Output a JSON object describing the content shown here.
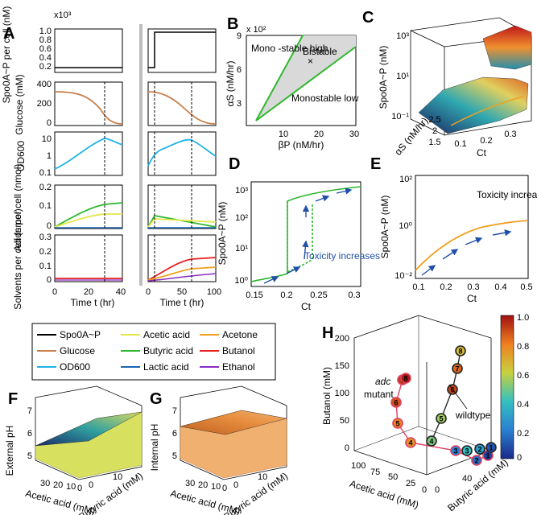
{
  "panels": {
    "A": "A",
    "B": "B",
    "C": "C",
    "D": "D",
    "E": "E",
    "F": "F",
    "G": "G",
    "H": "H"
  },
  "colors": {
    "spo0a": "#000000",
    "glucose": "#c8804a",
    "od600": "#1fb3e6",
    "acetic": "#e6e64a",
    "butyric": "#2eb82e",
    "lactic": "#1a66b3",
    "acetone": "#f0a020",
    "butanol": "#e62020",
    "ethanol": "#8a2bc2",
    "arrow": "#1f4fa8",
    "region": "#d9d9d9"
  },
  "panelA": {
    "xlabel": "Time t (hr)",
    "scale": "x10³",
    "rows": [
      {
        "label": "Spo0A~P per cell (nM)",
        "ticks": [
          "1.0",
          "0.8",
          "0.6",
          "0.4",
          "0.2",
          "0"
        ]
      },
      {
        "label": "Glucose (mM)",
        "ticks": [
          "400",
          "200",
          "0"
        ]
      },
      {
        "label": "OD600",
        "ticks": [
          "10",
          "1",
          "0.1"
        ]
      },
      {
        "label": "Acids per cell (nmol)",
        "ticks": [
          "0.2",
          "0.1",
          "0"
        ]
      },
      {
        "label": "Solvents per cell (nmol)",
        "ticks": [
          "0.3",
          "0.2",
          "0.1",
          "0"
        ]
      }
    ],
    "left_xticks": [
      "0",
      "20",
      "40"
    ],
    "right_xticks": [
      "0",
      "50",
      "100"
    ]
  },
  "panelB": {
    "scale": "x 10²",
    "ylabel": "αS (nM/hr)",
    "xlabel": "βP (nM/hr)",
    "xticks": [
      "10",
      "20",
      "30"
    ],
    "yticks": [
      "9",
      "6",
      "3"
    ],
    "region_labels": [
      "Mono -stable high",
      "Bistable",
      "Monostable low"
    ],
    "marker": "×"
  },
  "panelC": {
    "zlabel": "Spo0A~P (nM)",
    "zticks": [
      "10³",
      "10¹",
      "10⁻¹"
    ],
    "xlabel": "Ct",
    "xticks": [
      "0.1",
      "0.2",
      "0.3"
    ],
    "ylabel": "αS (nM/hr)",
    "yticks": [
      "2.5",
      "2",
      "1.5"
    ]
  },
  "panelD": {
    "ylabel": "Spo0A~P (nM)",
    "xlabel": "Ct",
    "xticks": [
      "0.15",
      "0.2",
      "0.25",
      "0.3"
    ],
    "yticks": [
      "10³",
      "10²",
      "10¹",
      "10⁰"
    ],
    "annotation": "Toxicity increases"
  },
  "panelE": {
    "ylabel": "Spo0A~P (nM)",
    "xlabel": "Ct",
    "xticks": [
      "0.1",
      "0.2",
      "0.3",
      "0.4",
      "0.5"
    ],
    "yticks": [
      "10²",
      "10⁰",
      "10⁻²"
    ],
    "annotation": "Toxicity increases"
  },
  "legend": [
    {
      "name": "Spo0A~P",
      "key": "spo0a"
    },
    {
      "name": "Acetic acid",
      "key": "acetic"
    },
    {
      "name": "Acetone",
      "key": "acetone"
    },
    {
      "name": "Glucose",
      "key": "glucose"
    },
    {
      "name": "Butyric acid",
      "key": "butyric"
    },
    {
      "name": "Butanol",
      "key": "butanol"
    },
    {
      "name": "OD600",
      "key": "od600"
    },
    {
      "name": "Lactic acid",
      "key": "lactic"
    },
    {
      "name": "Ethanol",
      "key": "ethanol"
    }
  ],
  "panelF": {
    "zlabel": "External pH",
    "zticks": [
      "7",
      "6",
      "5"
    ],
    "xlabel": "Acetic acid (mM)",
    "xticks": [
      "30",
      "20",
      "10",
      "0"
    ],
    "ylabel": "Butyric acid (mM)",
    "yticks": [
      "0",
      "10"
    ]
  },
  "panelG": {
    "zlabel": "Internal pH",
    "zticks": [
      "7",
      "6",
      "5"
    ],
    "xlabel": "Acetic acid (mM)",
    "xticks": [
      "30",
      "20",
      "10",
      "0"
    ],
    "ylabel": "Butyric acid (mM)",
    "yticks": [
      "0",
      "10"
    ]
  },
  "panelH": {
    "zlabel": "Butanol (mM)",
    "zticks": [
      "200",
      "150",
      "100",
      "50",
      "0"
    ],
    "xlabel": "Acetic acid (mM)",
    "xticks": [
      "100",
      "75",
      "50",
      "25",
      "0"
    ],
    "ylabel": "Butyric acid (mM)",
    "yticks": [
      "0",
      "40"
    ],
    "mutant_label_1": "adc",
    "mutant_label_2": "mutant",
    "wildtype_label": "wildtype",
    "colorbar_ticks": [
      "1.0",
      "0.8",
      "0.6",
      "0.4",
      "0.2",
      "0"
    ],
    "wildtype_points": [
      {
        "n": "1",
        "c": 0.1
      },
      {
        "n": "2",
        "c": 0.3
      },
      {
        "n": "3",
        "c": 0.4
      },
      {
        "n": "4",
        "c": 0.5
      },
      {
        "n": "5",
        "c": 0.55
      },
      {
        "n": "6",
        "c": 0.9
      },
      {
        "n": "7",
        "c": 0.85
      },
      {
        "n": "8",
        "c": 0.65
      }
    ],
    "mutant_points": [
      {
        "n": "1",
        "c": 0.05
      },
      {
        "n": "2",
        "c": 0.15
      },
      {
        "n": "3",
        "c": 0.2
      },
      {
        "n": "4",
        "c": 0.75
      },
      {
        "n": "5",
        "c": 0.8
      },
      {
        "n": "6",
        "c": 0.88
      },
      {
        "n": "7",
        "c": 0.92
      },
      {
        "n": "8",
        "c": 0.98
      }
    ]
  }
}
